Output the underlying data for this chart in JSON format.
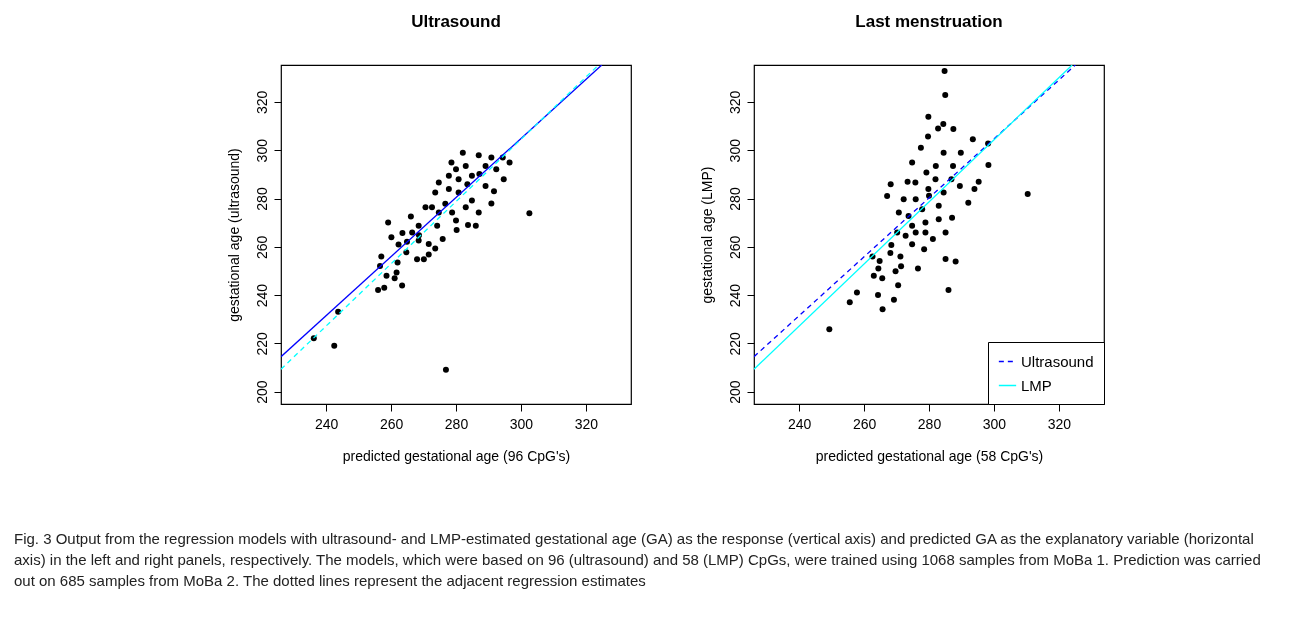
{
  "chart_data": [
    {
      "type": "scatter",
      "title": "Ultrasound",
      "xlabel": "predicted gestational age (96 CpG's)",
      "ylabel": "gestational age (ultrasound)",
      "xlim": [
        226.1,
        333.9
      ],
      "ylim": [
        194.9,
        335.3
      ],
      "xticks": [
        240,
        260,
        280,
        300,
        320
      ],
      "yticks": [
        200,
        220,
        240,
        260,
        280,
        300,
        320
      ],
      "grid": false,
      "annotations": [
        "Fig. 3 Output from the regression models with ultrasound- and LMP-estimated gestational age (GA) as the response (vertical axis) and predicted GA as the explanatory variable (horizontal axis) in the left and right panels, respectively. The models, which were based on 96 (ultrasound) and 58 (LMP) CpGs, were trained using 1068 samples from MoBa 1. Prediction was carried out on 685 samples from MoBa 2. The dotted lines represent the adjacent regression estimates"
      ],
      "series": [
        {
          "type": "scatter",
          "marker": "circle",
          "color": "#000000",
          "x": [
            236.2,
            242.5,
            243.7,
            276.9,
            302.6,
            256.0,
            257.9,
            263.4,
            258.6,
            261.1,
            256.6,
            257.0,
            259.1,
            260.1,
            261.7,
            262.3,
            263.5,
            264.9,
            266.1,
            268.0,
            270.1,
            268.5,
            271.6,
            273.6,
            272.6,
            274.7,
            278.6,
            282.1,
            287.0,
            290.9,
            294.4,
            296.5,
            294.7,
            290.9,
            291.7,
            287.0,
            283.7,
            280.2,
            275.9,
            271.6,
            278.8,
            280.8,
            284.9,
            277.8,
            283.0,
            289.1,
            273.6,
            270.6,
            276.7,
            284.9,
            289.1,
            280.8,
            268.5,
            266.5,
            274.2,
            286.1,
            280.0,
            287.2,
            292.4,
            283.5,
            277.8,
            274.7,
            283.0,
            280.0,
            264.7,
            268.6,
            262.0
          ],
          "values": [
            222.1,
            219.0,
            233.1,
            209.1,
            273.9,
            242.1,
            243.0,
            244.0,
            248.0,
            247.0,
            252.1,
            256.0,
            270.1,
            264.0,
            249.4,
            261.0,
            265.7,
            262.1,
            272.6,
            254.9,
            254.9,
            268.7,
            256.8,
            259.3,
            276.4,
            286.6,
            294.9,
            299.0,
            297.9,
            297.0,
            297.0,
            294.9,
            288.0,
            277.9,
            283.0,
            274.2,
            269.0,
            267.0,
            263.2,
            261.2,
            274.2,
            282.5,
            289.4,
            289.4,
            293.5,
            293.5,
            282.5,
            276.4,
            277.8,
            279.2,
            285.2,
            288.0,
            262.6,
            265.9,
            268.7,
            268.7,
            292.1,
            290.2,
            292.1,
            285.9,
            283.9,
            274.2,
            276.4,
            270.9,
            257.7,
            264.8,
            253.5
          ]
        },
        {
          "type": "line",
          "color": "#0000ff",
          "line_style": "solid",
          "x": [
            226.1,
            324.9
          ],
          "values": [
            214.5,
            335.3
          ]
        },
        {
          "type": "line",
          "color": "#00ffff",
          "line_style": "dashed",
          "x": [
            226.1,
            323.9
          ],
          "values": [
            209.3,
            335.3
          ]
        }
      ]
    },
    {
      "type": "scatter",
      "title": "Last menstruation",
      "xlabel": "predicted gestational age (58 CpG's)",
      "ylabel": "gestational age (LMP)",
      "xlim": [
        226.1,
        333.9
      ],
      "ylim": [
        194.9,
        335.3
      ],
      "xticks": [
        240,
        260,
        280,
        300,
        320
      ],
      "yticks": [
        200,
        220,
        240,
        260,
        280,
        300,
        320
      ],
      "grid": false,
      "legend": "bottom right",
      "series": [
        {
          "type": "scatter",
          "marker": "circle",
          "color": "#000000",
          "x": [
            249.3,
            255.6,
            257.8,
            264.3,
            265.7,
            269.2,
            270.5,
            263.0,
            265.6,
            264.4,
            264.8,
            262.6,
            269.7,
            271.4,
            276.6,
            285.1,
            288.2,
            286.0,
            267.1,
            268.2,
            284.8,
            285.0,
            279.8,
            284.4,
            282.8,
            287.5,
            279.7,
            277.5,
            274.8,
            293.5,
            298.2,
            298.3,
            294.0,
            310.4,
            295.3,
            273.4,
            272.2,
            270.7,
            270.2,
            268.4,
            268.1,
            271.2,
            274.8,
            278.5,
            281.2,
            285.1,
            287.1,
            283.0,
            278.9,
            275.9,
            273.7,
            275.9,
            280.0,
            284.5,
            289.5,
            292.1,
            287.4,
            282.1,
            279.2,
            275.8,
            284.5,
            289.8,
            279.8,
            283.0,
            286.9,
            272.8,
            274.8,
            278.9,
            282.0,
            277.9
          ],
          "values": [
            225.9,
            237.0,
            241.1,
            240.0,
            234.1,
            238.1,
            244.1,
            248.0,
            247.0,
            251.0,
            254.1,
            256.0,
            249.9,
            252.0,
            251.0,
            255.0,
            253.9,
            242.1,
            281.0,
            285.9,
            332.8,
            322.9,
            313.9,
            310.9,
            309.0,
            308.8,
            305.7,
            301.0,
            294.9,
            304.6,
            302.8,
            293.9,
            283.9,
            281.9,
            286.9,
            286.9,
            279.7,
            274.2,
            265.9,
            260.7,
            257.4,
            256.0,
            261.1,
            259.0,
            263.2,
            265.9,
            272.0,
            271.4,
            270.1,
            265.9,
            272.8,
            279.7,
            281.1,
            282.5,
            285.2,
            278.3,
            293.5,
            293.5,
            290.8,
            286.6,
            299.0,
            299.0,
            283.9,
            277.0,
            288.0,
            264.6,
            268.7,
            265.9,
            288.0,
            275.6
          ]
        },
        {
          "type": "line",
          "name": "Ultrasound",
          "color": "#0000ff",
          "line_style": "dashed",
          "x": [
            226.1,
            325.1
          ],
          "values": [
            214.5,
            335.3
          ]
        },
        {
          "type": "line",
          "name": "LMP",
          "color": "#00ffff",
          "line_style": "solid",
          "x": [
            226.1,
            324.1
          ],
          "values": [
            209.3,
            335.3
          ]
        }
      ]
    }
  ]
}
